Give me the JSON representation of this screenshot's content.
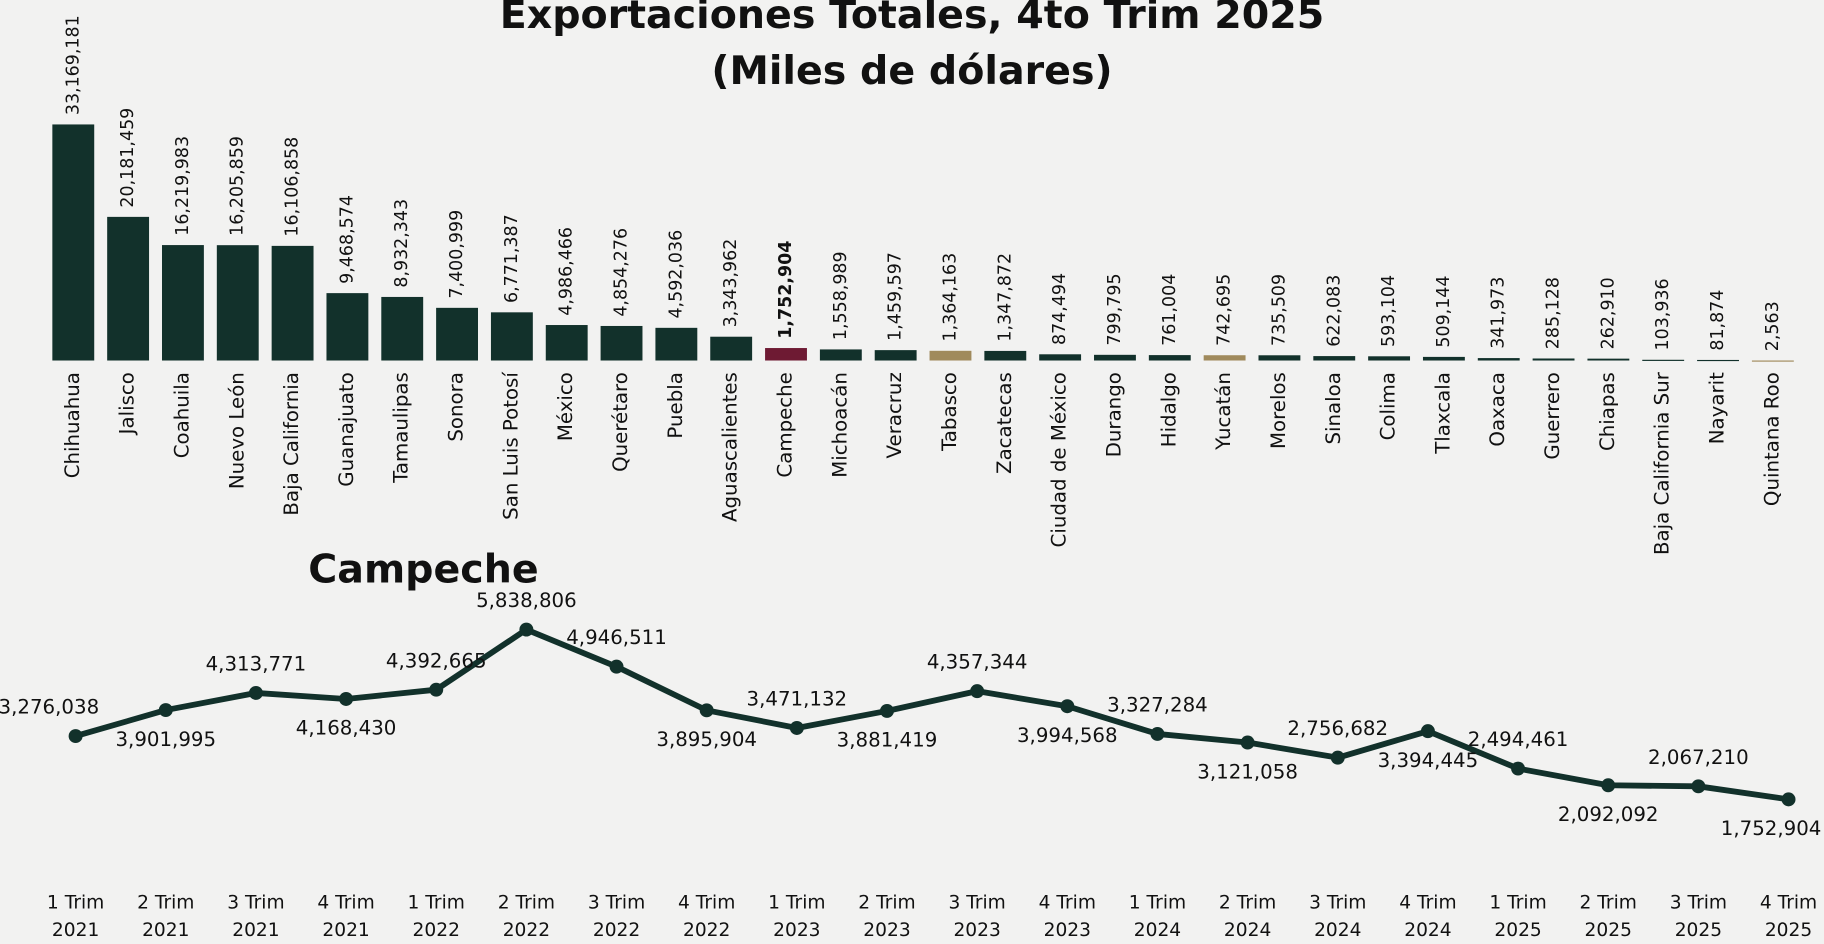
{
  "chart_data": [
    {
      "type": "bar",
      "title": "Exportaciones Totales, 4to Trim 2025",
      "subtitle": "(Miles de dólares)",
      "categories": [
        "Chihuahua",
        "Jalisco",
        "Coahuila",
        "Nuevo León",
        "Baja California",
        "Guanajuato",
        "Tamaulipas",
        "Sonora",
        "San Luis Potosí",
        "México",
        "Querétaro",
        "Puebla",
        "Aguascalientes",
        "Campeche",
        "Michoacán",
        "Veracruz",
        "Tabasco",
        "Zacatecas",
        "Ciudad de México",
        "Durango",
        "Hidalgo",
        "Yucatán",
        "Morelos",
        "Sinaloa",
        "Colima",
        "Tlaxcala",
        "Oaxaca",
        "Guerrero",
        "Chiapas",
        "Baja California Sur",
        "Nayarit",
        "Quintana Roo"
      ],
      "values": [
        33169181,
        20181459,
        16219983,
        16205859,
        16106858,
        9468574,
        8932343,
        7400999,
        6771387,
        4986466,
        4854276,
        4592036,
        3343962,
        1752904,
        1558989,
        1459597,
        1364163,
        1347872,
        874494,
        799795,
        761004,
        742695,
        735509,
        622083,
        593104,
        509144,
        341973,
        285128,
        262910,
        103936,
        81874,
        2563
      ],
      "value_labels": [
        "33,169,181",
        "20,181,459",
        "16,219,983",
        "16,205,859",
        "16,106,858",
        "9,468,574",
        "8,932,343",
        "7,400,999",
        "6,771,387",
        "4,986,466",
        "4,854,276",
        "4,592,036",
        "3,343,962",
        "1,752,904",
        "1,558,989",
        "1,459,597",
        "1,364,163",
        "1,347,872",
        "874,494",
        "799,795",
        "761,004",
        "742,695",
        "735,509",
        "622,083",
        "593,104",
        "509,144",
        "341,973",
        "285,128",
        "262,910",
        "103,936",
        "81,874",
        "2,563"
      ],
      "colors": [
        "#12312b",
        "#12312b",
        "#12312b",
        "#12312b",
        "#12312b",
        "#12312b",
        "#12312b",
        "#12312b",
        "#12312b",
        "#12312b",
        "#12312b",
        "#12312b",
        "#12312b",
        "#6e1a33",
        "#12312b",
        "#12312b",
        "#a08a5c",
        "#12312b",
        "#12312b",
        "#12312b",
        "#12312b",
        "#a08a5c",
        "#12312b",
        "#12312b",
        "#12312b",
        "#12312b",
        "#12312b",
        "#12312b",
        "#12312b",
        "#12312b",
        "#12312b",
        "#a08a5c"
      ],
      "highlight": 13,
      "ylim": [
        0,
        35000000
      ]
    },
    {
      "type": "line",
      "title": "Campeche",
      "categories": [
        "1 Trim 2021",
        "2 Trim 2021",
        "3 Trim 2021",
        "4 Trim 2021",
        "1 Trim 2022",
        "2 Trim 2022",
        "3 Trim 2022",
        "4 Trim 2022",
        "1 Trim 2023",
        "2 Trim 2023",
        "3 Trim 2023",
        "4 Trim 2023",
        "1 Trim 2024",
        "2 Trim 2024",
        "3 Trim 2024",
        "4 Trim 2024",
        "1 Trim 2025",
        "2 Trim 2025",
        "3 Trim 2025",
        "4 Trim 2025"
      ],
      "values": [
        3276038,
        3901995,
        4313771,
        4168430,
        4392665,
        5838806,
        4946511,
        3895904,
        3471132,
        3881419,
        4357344,
        3994568,
        3327284,
        3121058,
        2756682,
        3394445,
        2494461,
        2092092,
        2067210,
        1752904
      ],
      "value_labels": [
        "3,276,038",
        "3,901,995",
        "4,313,771",
        "4,168,430",
        "4,392,665",
        "5,838,806",
        "4,946,511",
        "3,895,904",
        "3,471,132",
        "3,881,419",
        "4,357,344",
        "3,994,568",
        "3,327,284",
        "3,121,058",
        "2,756,682",
        "3,394,445",
        "2,494,461",
        "2,092,092",
        "2,067,210",
        "1,752,904"
      ],
      "color": "#12312b",
      "ylim": [
        0,
        7500000
      ]
    }
  ]
}
